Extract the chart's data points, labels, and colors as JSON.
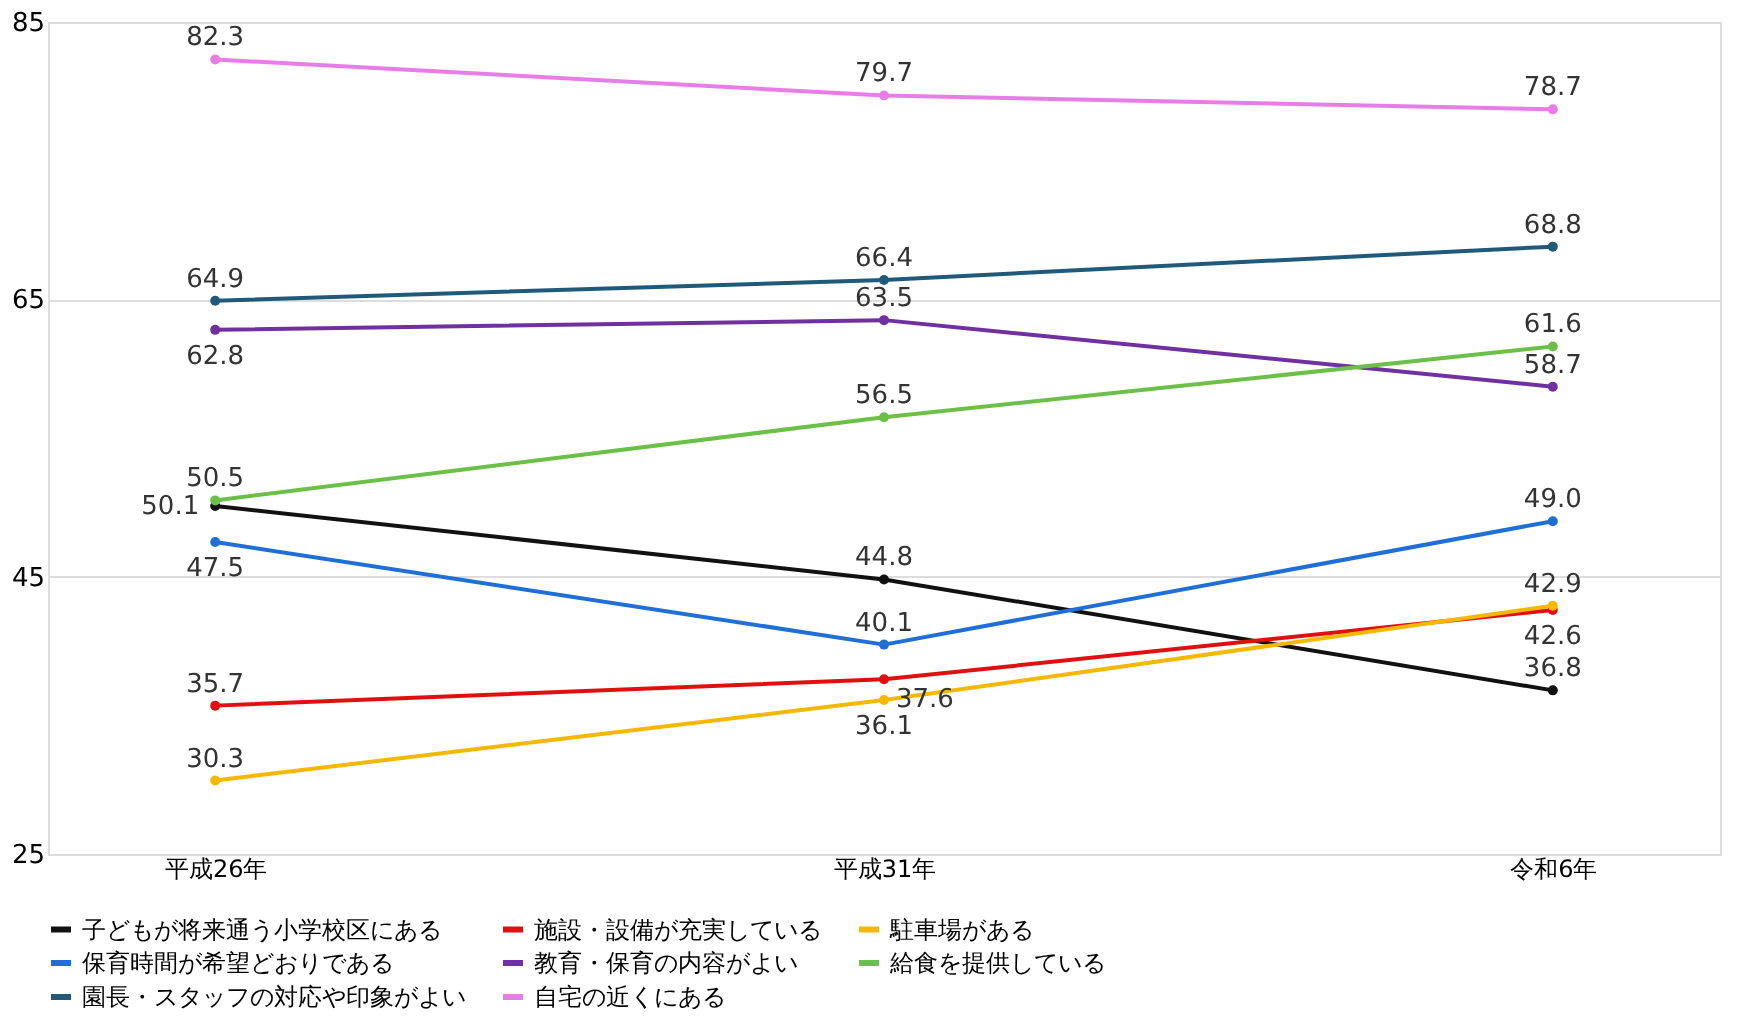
{
  "chart_data": {
    "type": "line",
    "categories": [
      "平成26年",
      "平成31年",
      "令和6年"
    ],
    "series": [
      {
        "name": "子どもが将来通う小学校区にある",
        "color": "#111111",
        "values": [
          50.1,
          44.8,
          36.8
        ]
      },
      {
        "name": "施設・設備が充実している",
        "color": "#e01010",
        "values": [
          35.7,
          37.6,
          42.6
        ]
      },
      {
        "name": "駐車場がある",
        "color": "#f5b800",
        "values": [
          30.3,
          36.1,
          42.9
        ]
      },
      {
        "name": "保育時間が希望どおりである",
        "color": "#1f6fd6",
        "values": [
          47.5,
          40.1,
          49.0
        ],
        "value_labels": [
          "47.5",
          "40.1",
          "49.0"
        ]
      },
      {
        "name": "教育・保育の内容がよい",
        "color": "#7030a0",
        "values": [
          62.8,
          63.5,
          58.7
        ]
      },
      {
        "name": "給食を提供している",
        "color": "#6cc04a",
        "values": [
          50.5,
          56.5,
          61.6
        ]
      },
      {
        "name": "園長・スタッフの対応や印象がよい",
        "color": "#1f5a7a",
        "values": [
          64.9,
          66.4,
          68.8
        ]
      },
      {
        "name": "自宅の近くにある",
        "color": "#e87de8",
        "values": [
          82.3,
          79.7,
          78.7
        ]
      }
    ],
    "ylim": [
      25,
      85
    ],
    "yticks": [
      25,
      45,
      65,
      85
    ],
    "grid": "y",
    "legend": "bottom",
    "marker": "circle",
    "line_style": "solid",
    "data_labels": true
  }
}
